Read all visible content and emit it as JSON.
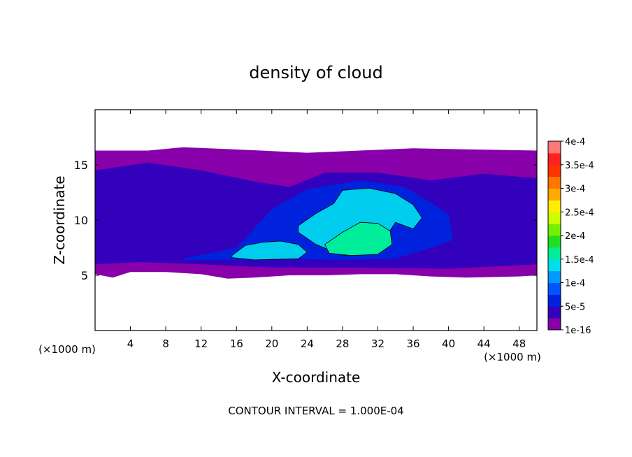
{
  "chart_data": {
    "type": "heatmap",
    "title": "density of cloud",
    "xlabel": "X-coordinate",
    "ylabel": "Z-coordinate",
    "x_unit": "(×1000 m)",
    "z_unit": "(×1000 m)",
    "xlim": [
      0,
      50
    ],
    "ylim": [
      0,
      20
    ],
    "x_ticks": [
      4,
      8,
      12,
      16,
      20,
      24,
      28,
      32,
      36,
      40,
      44,
      48
    ],
    "y_ticks": [
      5,
      10,
      15
    ],
    "footer": "CONTOUR INTERVAL = 1.000E-04",
    "colorbar": {
      "labels": [
        "1e-16",
        "5e-5",
        "1e-4",
        "1.5e-4",
        "2e-4",
        "2.5e-4",
        "3e-4",
        "3.5e-4",
        "4e-4"
      ],
      "colors": [
        "#8800aa",
        "#3300bb",
        "#0022dd",
        "#0055ff",
        "#0099ff",
        "#00ddee",
        "#00ee99",
        "#22dd22",
        "#77ee00",
        "#ccff00",
        "#ffee00",
        "#ffaa00",
        "#ff7700",
        "#ff3300",
        "#ff2222",
        "#ff7777"
      ]
    },
    "cloud_base_km": 5,
    "cloud_top_km": 16.3,
    "regions": [
      {
        "level": "1e-16",
        "color": "#8800aa",
        "outline": [
          [
            0,
            16.3
          ],
          [
            6,
            16.3
          ],
          [
            10,
            16.6
          ],
          [
            16,
            16.4
          ],
          [
            24,
            16.1
          ],
          [
            36,
            16.5
          ],
          [
            50,
            16.3
          ],
          [
            50,
            5
          ],
          [
            48,
            4.9
          ],
          [
            42,
            4.8
          ],
          [
            38,
            4.9
          ],
          [
            34,
            5.1
          ],
          [
            30,
            5.1
          ],
          [
            26,
            5.0
          ],
          [
            22,
            5.0
          ],
          [
            18,
            4.8
          ],
          [
            15,
            4.7
          ],
          [
            12,
            5.1
          ],
          [
            8,
            5.3
          ],
          [
            4,
            5.3
          ],
          [
            2,
            4.8
          ],
          [
            0,
            5.1
          ]
        ]
      },
      {
        "level": "5e-5",
        "color": "#3300bb",
        "outline": [
          [
            0,
            14.5
          ],
          [
            6,
            15.2
          ],
          [
            12,
            14.5
          ],
          [
            18,
            13.5
          ],
          [
            22,
            13
          ],
          [
            26,
            14.3
          ],
          [
            32,
            14.3
          ],
          [
            38,
            13.6
          ],
          [
            44,
            14.2
          ],
          [
            50,
            13.8
          ],
          [
            50,
            6
          ],
          [
            40,
            5.6
          ],
          [
            30,
            5.7
          ],
          [
            20,
            5.7
          ],
          [
            12,
            6
          ],
          [
            5,
            6.2
          ],
          [
            0,
            6
          ]
        ]
      },
      {
        "level": "1e-4",
        "color": "#0022dd",
        "outline": [
          [
            10,
            6.5
          ],
          [
            16,
            7.5
          ],
          [
            20,
            11
          ],
          [
            24,
            12.8
          ],
          [
            30,
            13.6
          ],
          [
            35,
            13
          ],
          [
            38,
            11.6
          ],
          [
            40,
            10.5
          ],
          [
            40.5,
            8.2
          ],
          [
            38,
            7.5
          ],
          [
            34,
            6.5
          ],
          [
            28,
            6.4
          ],
          [
            22,
            6.5
          ],
          [
            16,
            6.4
          ],
          [
            10,
            6.4
          ]
        ]
      },
      {
        "level": "1.5e-4",
        "color": "#00ccee",
        "outline": [
          [
            23,
            9.5
          ],
          [
            25,
            10.6
          ],
          [
            27,
            11.5
          ],
          [
            28,
            12.7
          ],
          [
            31,
            12.9
          ],
          [
            34,
            12.4
          ],
          [
            36,
            11.4
          ],
          [
            37,
            10.2
          ],
          [
            36,
            9.2
          ],
          [
            34,
            9.8
          ],
          [
            33,
            8.6
          ],
          [
            32,
            7.1
          ],
          [
            28,
            6.8
          ],
          [
            25,
            7.8
          ],
          [
            23,
            8.9
          ]
        ]
      },
      {
        "level": "1.5e-4",
        "color": "#00ccee",
        "outline": [
          [
            15.5,
            6.8
          ],
          [
            17,
            7.7
          ],
          [
            19,
            8.0
          ],
          [
            21,
            8.1
          ],
          [
            23,
            7.8
          ],
          [
            24,
            7.1
          ],
          [
            23,
            6.5
          ],
          [
            18,
            6.4
          ],
          [
            15.5,
            6.6
          ]
        ]
      },
      {
        "level": "2e-4",
        "color": "#00ee99",
        "outline": [
          [
            26,
            7.8
          ],
          [
            28,
            8.9
          ],
          [
            30,
            9.8
          ],
          [
            32,
            9.7
          ],
          [
            33.4,
            9
          ],
          [
            33.6,
            7.8
          ],
          [
            32,
            6.9
          ],
          [
            29,
            6.8
          ],
          [
            26.5,
            7
          ]
        ]
      }
    ]
  }
}
